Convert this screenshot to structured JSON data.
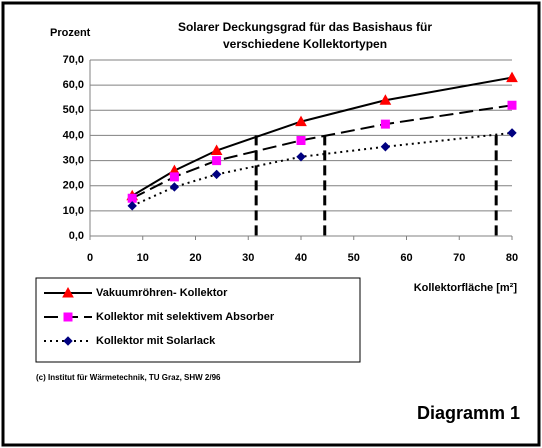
{
  "chart_data": {
    "type": "line",
    "title": [
      "Solarer Deckungsgrad für das Basishaus für",
      "verschiedene Kollektortypen"
    ],
    "y_label": "Prozent",
    "x_label": "Kollektorfläche [m²]",
    "x": [
      8,
      16,
      24,
      40,
      56,
      80
    ],
    "series": [
      {
        "name": "Vakuumröhren- Kollektor",
        "color": "#ff0000",
        "marker": "triangle",
        "dash": "solid",
        "values": [
          16,
          26,
          34,
          45.5,
          54,
          63
        ]
      },
      {
        "name": "Kollektor mit selektivem Absorber",
        "color": "#ff00ff",
        "marker": "square",
        "dash": "dashed",
        "values": [
          15,
          23.5,
          30,
          38,
          44.5,
          52
        ]
      },
      {
        "name": "Kollektor mit Solarlack",
        "color": "#000080",
        "marker": "diamond",
        "dash": "dotted",
        "values": [
          12,
          19.5,
          24.5,
          31.5,
          35.5,
          41
        ]
      }
    ],
    "drop_lines": {
      "x": [
        31.5,
        44.5,
        77
      ],
      "y": 40
    },
    "xlim": [
      0,
      80
    ],
    "xticks": [
      0,
      10,
      20,
      30,
      40,
      50,
      60,
      70,
      80
    ],
    "ylim": [
      0,
      70
    ],
    "yticks": [
      {
        "value": 0,
        "label": "0,0"
      },
      {
        "value": 10,
        "label": "10,0"
      },
      {
        "value": 20,
        "label": "20,0"
      },
      {
        "value": 30,
        "label": "30,0"
      },
      {
        "value": 40,
        "label": "40,0"
      },
      {
        "value": 50,
        "label": "50,0"
      },
      {
        "value": 60,
        "label": "60,0"
      },
      {
        "value": 70,
        "label": "70,0"
      }
    ],
    "grid": true,
    "source": "(c) Institut für Wärmetechnik, TU Graz, SHW 2/96",
    "caption": "Diagramm 1"
  }
}
